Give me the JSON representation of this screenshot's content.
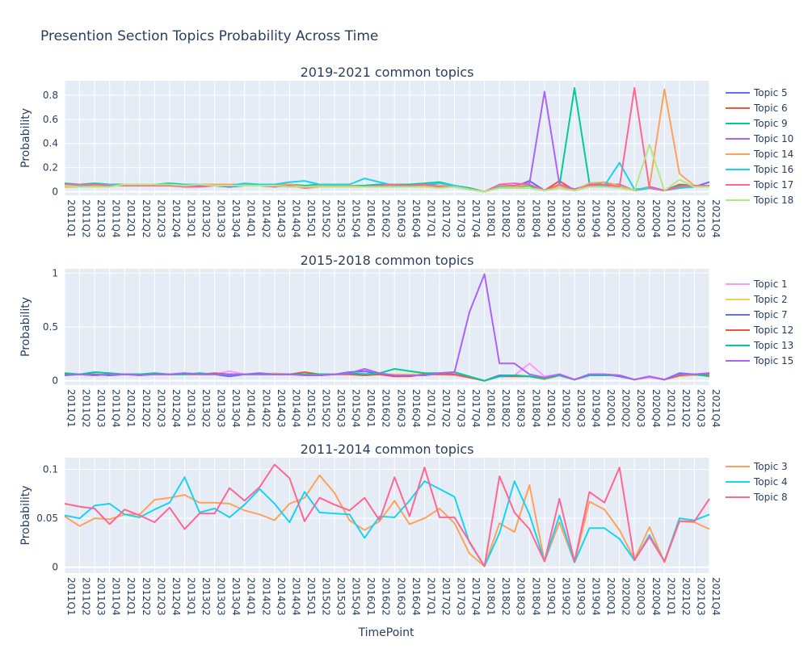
{
  "figure_title": "Presention Section Topics Probability Across Time",
  "xlabel": "TimePoint",
  "chart_data": [
    {
      "type": "line",
      "title": "2019-2021 common topics",
      "ylabel": "Probability",
      "ylim": [
        -0.03,
        0.92
      ],
      "yticks": [
        0,
        0.2,
        0.4,
        0.6,
        0.8
      ],
      "ytick_labels": [
        "0",
        "0.2",
        "0.4",
        "0.6",
        "0.8"
      ],
      "grid": true,
      "legend_position": "right",
      "x": [
        "2011Q1",
        "2011Q2",
        "2011Q3",
        "2011Q4",
        "2012Q1",
        "2012Q2",
        "2012Q3",
        "2012Q4",
        "2013Q1",
        "2013Q2",
        "2013Q3",
        "2013Q4",
        "2014Q1",
        "2014Q2",
        "2014Q3",
        "2014Q4",
        "2015Q1",
        "2015Q2",
        "2015Q3",
        "2015Q4",
        "2016Q1",
        "2016Q2",
        "2016Q3",
        "2016Q4",
        "2017Q1",
        "2017Q2",
        "2017Q3",
        "2017Q4",
        "2018Q1",
        "2018Q2",
        "2018Q3",
        "2018Q4",
        "2019Q1",
        "2019Q2",
        "2019Q3",
        "2019Q4",
        "2020Q1",
        "2020Q2",
        "2020Q3",
        "2020Q4",
        "2021Q1",
        "2021Q2",
        "2021Q3",
        "2021Q4"
      ],
      "series": [
        {
          "name": "Topic 5",
          "color": "#636efa",
          "values": [
            0.05,
            0.05,
            0.06,
            0.06,
            0.05,
            0.05,
            0.05,
            0.05,
            0.06,
            0.05,
            0.05,
            0.04,
            0.05,
            0.05,
            0.05,
            0.04,
            0.04,
            0.05,
            0.05,
            0.04,
            0.05,
            0.05,
            0.05,
            0.05,
            0.05,
            0.05,
            0.04,
            0.02,
            0.0,
            0.04,
            0.04,
            0.09,
            0.01,
            0.06,
            0.01,
            0.06,
            0.06,
            0.06,
            0.01,
            0.04,
            0.01,
            0.05,
            0.04,
            0.08
          ]
        },
        {
          "name": "Topic 6",
          "color": "#ef553b",
          "values": [
            0.06,
            0.06,
            0.05,
            0.06,
            0.05,
            0.06,
            0.06,
            0.05,
            0.05,
            0.05,
            0.06,
            0.06,
            0.06,
            0.05,
            0.06,
            0.06,
            0.05,
            0.05,
            0.06,
            0.05,
            0.05,
            0.06,
            0.05,
            0.06,
            0.06,
            0.05,
            0.05,
            0.03,
            0.0,
            0.05,
            0.05,
            0.05,
            0.01,
            0.09,
            0.01,
            0.06,
            0.06,
            0.05,
            0.01,
            0.04,
            0.01,
            0.06,
            0.05,
            0.05
          ]
        },
        {
          "name": "Topic 9",
          "color": "#00cc96",
          "values": [
            0.07,
            0.06,
            0.07,
            0.06,
            0.06,
            0.06,
            0.06,
            0.07,
            0.06,
            0.06,
            0.06,
            0.06,
            0.05,
            0.06,
            0.05,
            0.06,
            0.05,
            0.06,
            0.06,
            0.05,
            0.05,
            0.06,
            0.06,
            0.06,
            0.07,
            0.08,
            0.05,
            0.03,
            0.0,
            0.05,
            0.04,
            0.05,
            0.01,
            0.05,
            0.86,
            0.07,
            0.06,
            0.05,
            0.01,
            0.03,
            0.01,
            0.05,
            0.05,
            0.04
          ]
        },
        {
          "name": "Topic 10",
          "color": "#ab63fa",
          "values": [
            0.05,
            0.05,
            0.05,
            0.05,
            0.05,
            0.05,
            0.05,
            0.05,
            0.05,
            0.05,
            0.05,
            0.05,
            0.05,
            0.05,
            0.05,
            0.05,
            0.04,
            0.04,
            0.05,
            0.04,
            0.04,
            0.05,
            0.04,
            0.05,
            0.05,
            0.05,
            0.04,
            0.02,
            0.0,
            0.04,
            0.05,
            0.07,
            0.83,
            0.06,
            0.02,
            0.06,
            0.05,
            0.05,
            0.01,
            0.04,
            0.01,
            0.04,
            0.05,
            0.05
          ]
        },
        {
          "name": "Topic 14",
          "color": "#ffa15a",
          "values": [
            0.04,
            0.04,
            0.05,
            0.05,
            0.06,
            0.06,
            0.06,
            0.06,
            0.06,
            0.06,
            0.06,
            0.06,
            0.06,
            0.06,
            0.06,
            0.06,
            0.04,
            0.05,
            0.05,
            0.05,
            0.04,
            0.05,
            0.05,
            0.05,
            0.05,
            0.05,
            0.05,
            0.02,
            0.0,
            0.05,
            0.04,
            0.06,
            0.01,
            0.05,
            0.01,
            0.07,
            0.08,
            0.05,
            0.01,
            0.04,
            0.85,
            0.15,
            0.05,
            0.04
          ]
        },
        {
          "name": "Topic 16",
          "color": "#19d3f3",
          "values": [
            0.05,
            0.05,
            0.06,
            0.06,
            0.05,
            0.05,
            0.05,
            0.06,
            0.06,
            0.06,
            0.05,
            0.05,
            0.07,
            0.06,
            0.06,
            0.08,
            0.09,
            0.06,
            0.06,
            0.06,
            0.11,
            0.08,
            0.05,
            0.05,
            0.06,
            0.07,
            0.05,
            0.02,
            0.0,
            0.04,
            0.03,
            0.03,
            0.01,
            0.03,
            0.01,
            0.04,
            0.05,
            0.24,
            0.02,
            0.03,
            0.01,
            0.03,
            0.04,
            0.05
          ]
        },
        {
          "name": "Topic 17",
          "color": "#ff6692",
          "values": [
            0.06,
            0.06,
            0.06,
            0.05,
            0.05,
            0.05,
            0.05,
            0.05,
            0.04,
            0.04,
            0.05,
            0.05,
            0.05,
            0.05,
            0.04,
            0.05,
            0.03,
            0.04,
            0.04,
            0.04,
            0.04,
            0.05,
            0.06,
            0.05,
            0.06,
            0.04,
            0.04,
            0.02,
            0.0,
            0.06,
            0.07,
            0.06,
            0.01,
            0.06,
            0.01,
            0.05,
            0.06,
            0.04,
            0.86,
            0.03,
            0.01,
            0.04,
            0.05,
            0.05
          ]
        },
        {
          "name": "Topic 18",
          "color": "#b6e880",
          "values": [
            0.05,
            0.04,
            0.04,
            0.04,
            0.06,
            0.06,
            0.06,
            0.06,
            0.05,
            0.06,
            0.05,
            0.05,
            0.05,
            0.05,
            0.05,
            0.04,
            0.04,
            0.04,
            0.04,
            0.04,
            0.04,
            0.04,
            0.04,
            0.04,
            0.04,
            0.03,
            0.04,
            0.02,
            0.0,
            0.03,
            0.03,
            0.03,
            0.01,
            0.03,
            0.01,
            0.04,
            0.04,
            0.03,
            0.01,
            0.39,
            0.01,
            0.1,
            0.04,
            0.04
          ]
        }
      ]
    },
    {
      "type": "line",
      "title": "2015-2018 common topics",
      "ylabel": "Probability",
      "ylim": [
        -0.04,
        1.04
      ],
      "yticks": [
        0,
        0.5,
        1
      ],
      "ytick_labels": [
        "0",
        "0.5",
        "1"
      ],
      "grid": true,
      "legend_position": "right",
      "x": [
        "2011Q1",
        "2011Q2",
        "2011Q3",
        "2011Q4",
        "2012Q1",
        "2012Q2",
        "2012Q3",
        "2012Q4",
        "2013Q1",
        "2013Q2",
        "2013Q3",
        "2013Q4",
        "2014Q1",
        "2014Q2",
        "2014Q3",
        "2014Q4",
        "2015Q1",
        "2015Q2",
        "2015Q3",
        "2015Q4",
        "2016Q1",
        "2016Q2",
        "2016Q3",
        "2016Q4",
        "2017Q1",
        "2017Q2",
        "2017Q3",
        "2017Q4",
        "2018Q1",
        "2018Q2",
        "2018Q3",
        "2018Q4",
        "2019Q1",
        "2019Q2",
        "2019Q3",
        "2019Q4",
        "2020Q1",
        "2020Q2",
        "2020Q3",
        "2020Q4",
        "2021Q1",
        "2021Q2",
        "2021Q3",
        "2021Q4"
      ],
      "series": [
        {
          "name": "Topic 1",
          "color": "#ff97ff",
          "values": [
            0.05,
            0.06,
            0.06,
            0.05,
            0.06,
            0.06,
            0.06,
            0.06,
            0.06,
            0.07,
            0.06,
            0.09,
            0.06,
            0.06,
            0.06,
            0.06,
            0.06,
            0.06,
            0.06,
            0.07,
            0.07,
            0.06,
            0.06,
            0.06,
            0.06,
            0.06,
            0.05,
            0.03,
            0.0,
            0.05,
            0.05,
            0.16,
            0.04,
            0.06,
            0.01,
            0.05,
            0.05,
            0.05,
            0.01,
            0.03,
            0.01,
            0.06,
            0.06,
            0.06
          ]
        },
        {
          "name": "Topic 2",
          "color": "#fecb52",
          "values": [
            0.06,
            0.06,
            0.06,
            0.06,
            0.06,
            0.06,
            0.07,
            0.06,
            0.06,
            0.06,
            0.06,
            0.06,
            0.06,
            0.06,
            0.07,
            0.06,
            0.06,
            0.06,
            0.06,
            0.06,
            0.06,
            0.06,
            0.06,
            0.06,
            0.06,
            0.06,
            0.06,
            0.03,
            0.0,
            0.05,
            0.05,
            0.04,
            0.01,
            0.05,
            0.01,
            0.05,
            0.05,
            0.05,
            0.01,
            0.04,
            0.01,
            0.04,
            0.05,
            0.05
          ]
        },
        {
          "name": "Topic 7",
          "color": "#636efa",
          "values": [
            0.06,
            0.06,
            0.06,
            0.05,
            0.06,
            0.06,
            0.06,
            0.06,
            0.07,
            0.06,
            0.06,
            0.04,
            0.06,
            0.07,
            0.06,
            0.06,
            0.06,
            0.05,
            0.06,
            0.08,
            0.09,
            0.06,
            0.04,
            0.05,
            0.05,
            0.07,
            0.06,
            0.03,
            0.0,
            0.05,
            0.05,
            0.04,
            0.02,
            0.06,
            0.01,
            0.06,
            0.06,
            0.04,
            0.01,
            0.04,
            0.01,
            0.07,
            0.06,
            0.07
          ]
        },
        {
          "name": "Topic 12",
          "color": "#ef553b",
          "values": [
            0.06,
            0.06,
            0.05,
            0.06,
            0.06,
            0.06,
            0.06,
            0.06,
            0.06,
            0.06,
            0.07,
            0.06,
            0.06,
            0.06,
            0.06,
            0.06,
            0.08,
            0.06,
            0.06,
            0.06,
            0.05,
            0.06,
            0.04,
            0.04,
            0.06,
            0.06,
            0.06,
            0.03,
            0.0,
            0.04,
            0.04,
            0.04,
            0.02,
            0.05,
            0.01,
            0.05,
            0.06,
            0.05,
            0.01,
            0.04,
            0.01,
            0.05,
            0.06,
            0.06
          ]
        },
        {
          "name": "Topic 13",
          "color": "#00cc96",
          "values": [
            0.07,
            0.06,
            0.08,
            0.07,
            0.06,
            0.06,
            0.07,
            0.06,
            0.06,
            0.07,
            0.06,
            0.06,
            0.06,
            0.06,
            0.06,
            0.06,
            0.06,
            0.06,
            0.06,
            0.07,
            0.06,
            0.07,
            0.11,
            0.09,
            0.07,
            0.07,
            0.08,
            0.04,
            0.0,
            0.04,
            0.05,
            0.04,
            0.02,
            0.05,
            0.01,
            0.05,
            0.05,
            0.05,
            0.01,
            0.04,
            0.01,
            0.06,
            0.06,
            0.04
          ]
        },
        {
          "name": "Topic 15",
          "color": "#ab63fa",
          "values": [
            0.05,
            0.06,
            0.05,
            0.06,
            0.06,
            0.05,
            0.06,
            0.06,
            0.07,
            0.06,
            0.06,
            0.06,
            0.06,
            0.06,
            0.06,
            0.06,
            0.05,
            0.05,
            0.06,
            0.07,
            0.11,
            0.07,
            0.05,
            0.05,
            0.05,
            0.07,
            0.08,
            0.64,
            0.99,
            0.16,
            0.16,
            0.06,
            0.03,
            0.06,
            0.01,
            0.06,
            0.06,
            0.05,
            0.01,
            0.04,
            0.01,
            0.06,
            0.06,
            0.07
          ]
        }
      ]
    },
    {
      "type": "line",
      "title": "2011-2014 common topics",
      "ylabel": "Probability",
      "ylim": [
        -0.006,
        0.112
      ],
      "yticks": [
        0,
        0.05,
        0.1
      ],
      "ytick_labels": [
        "0",
        "0.05",
        "0.1"
      ],
      "grid": true,
      "legend_position": "right",
      "x": [
        "2011Q1",
        "2011Q2",
        "2011Q3",
        "2011Q4",
        "2012Q1",
        "2012Q2",
        "2012Q3",
        "2012Q4",
        "2013Q1",
        "2013Q2",
        "2013Q3",
        "2013Q4",
        "2014Q1",
        "2014Q2",
        "2014Q3",
        "2014Q4",
        "2015Q1",
        "2015Q2",
        "2015Q3",
        "2015Q4",
        "2016Q1",
        "2016Q2",
        "2016Q3",
        "2016Q4",
        "2017Q1",
        "2017Q2",
        "2017Q3",
        "2017Q4",
        "2018Q1",
        "2018Q2",
        "2018Q3",
        "2018Q4",
        "2019Q1",
        "2019Q2",
        "2019Q3",
        "2019Q4",
        "2020Q1",
        "2020Q2",
        "2020Q3",
        "2020Q4",
        "2021Q1",
        "2021Q2",
        "2021Q3",
        "2021Q4"
      ],
      "series": [
        {
          "name": "Topic 3",
          "color": "#ffa15a",
          "values": [
            0.052,
            0.042,
            0.05,
            0.049,
            0.054,
            0.054,
            0.069,
            0.071,
            0.074,
            0.066,
            0.066,
            0.065,
            0.058,
            0.054,
            0.048,
            0.065,
            0.071,
            0.094,
            0.076,
            0.048,
            0.038,
            0.047,
            0.068,
            0.044,
            0.05,
            0.06,
            0.045,
            0.014,
            0.001,
            0.045,
            0.036,
            0.084,
            0.006,
            0.046,
            0.005,
            0.067,
            0.059,
            0.038,
            0.008,
            0.041,
            0.005,
            0.047,
            0.046,
            0.039
          ]
        },
        {
          "name": "Topic 4",
          "color": "#19d3f3",
          "values": [
            0.053,
            0.05,
            0.063,
            0.065,
            0.054,
            0.051,
            0.059,
            0.066,
            0.092,
            0.056,
            0.06,
            0.051,
            0.064,
            0.08,
            0.065,
            0.046,
            0.077,
            0.056,
            0.055,
            0.054,
            0.03,
            0.052,
            0.051,
            0.068,
            0.088,
            0.08,
            0.072,
            0.025,
            0.001,
            0.035,
            0.088,
            0.054,
            0.006,
            0.053,
            0.005,
            0.04,
            0.04,
            0.029,
            0.007,
            0.033,
            0.006,
            0.05,
            0.048,
            0.054
          ]
        },
        {
          "name": "Topic 8",
          "color": "#ff6692",
          "values": [
            0.065,
            0.062,
            0.06,
            0.044,
            0.059,
            0.053,
            0.046,
            0.061,
            0.039,
            0.055,
            0.055,
            0.081,
            0.068,
            0.082,
            0.105,
            0.091,
            0.047,
            0.071,
            0.064,
            0.058,
            0.071,
            0.048,
            0.092,
            0.052,
            0.102,
            0.051,
            0.051,
            0.026,
            0.001,
            0.093,
            0.056,
            0.039,
            0.006,
            0.07,
            0.006,
            0.077,
            0.066,
            0.102,
            0.007,
            0.031,
            0.006,
            0.047,
            0.047,
            0.07
          ]
        }
      ]
    }
  ]
}
